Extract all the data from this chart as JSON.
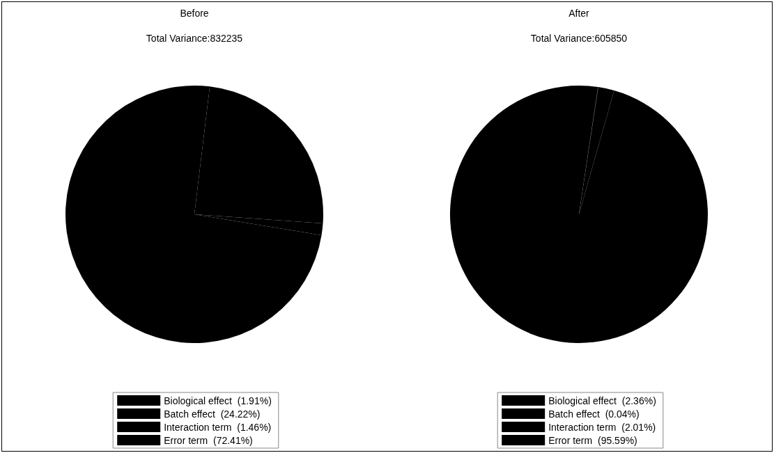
{
  "chart_data": [
    {
      "type": "pie",
      "title": "Before",
      "subtitle": "Total Variance:832235",
      "categories": [
        "Biological effect  (1.91%)",
        "Batch effect  (24.22%)",
        "Interaction term  (1.46%)",
        "Error term  (72.41%)"
      ],
      "values": [
        1.91,
        24.22,
        1.46,
        72.41
      ],
      "colors": [
        "#000000",
        "#000000",
        "#000000",
        "#000000"
      ],
      "legend": "bottom"
    },
    {
      "type": "pie",
      "title": "After",
      "subtitle": "Total Variance:605850",
      "categories": [
        "Biological effect  (2.36%)",
        "Batch effect  (0.04%)",
        "Interaction term  (2.01%)",
        "Error term  (95.59%)"
      ],
      "values": [
        2.36,
        0.04,
        2.01,
        95.59
      ],
      "colors": [
        "#000000",
        "#000000",
        "#000000",
        "#000000"
      ],
      "legend": "bottom"
    }
  ]
}
